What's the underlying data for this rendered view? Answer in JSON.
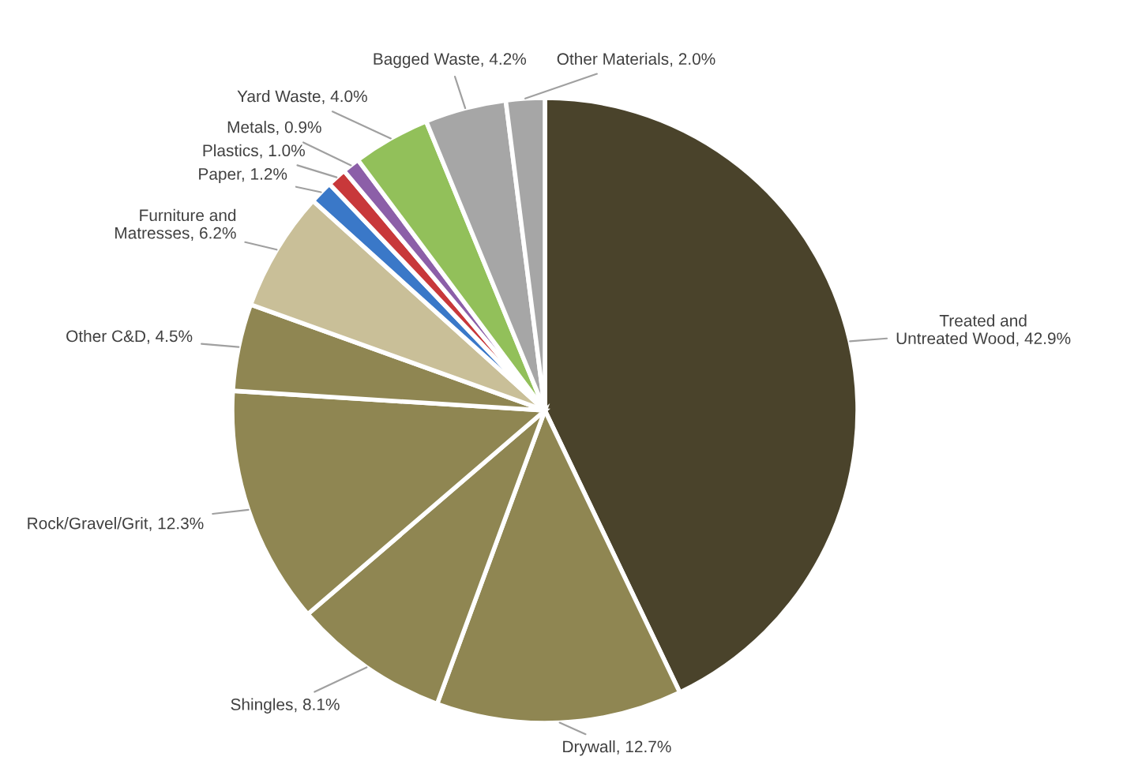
{
  "chart_data": {
    "type": "pie",
    "categories": [
      "Treated and\nUntreated Wood",
      "Drywall",
      "Shingles",
      "Rock/Gravel/Grit",
      "Other C&D",
      "Furniture and\nMatresses",
      "Paper",
      "Plastics",
      "Metals",
      "Yard Waste",
      "Bagged Waste",
      "Other Materials"
    ],
    "values": [
      42.9,
      12.7,
      8.1,
      12.3,
      4.5,
      6.2,
      1.2,
      1.0,
      0.9,
      4.0,
      4.2,
      2.0
    ],
    "colors": [
      "#4a432b",
      "#8f8652",
      "#8f8652",
      "#8f8652",
      "#8f8652",
      "#c9bf98",
      "#3a78c8",
      "#c8383a",
      "#8c5fa8",
      "#92c05a",
      "#a6a6a6",
      "#a6a6a6"
    ],
    "data_labels": true,
    "value_labels": [
      "42.9%",
      "12.7%",
      "8.1%",
      "12.3%",
      "4.5%",
      "6.2%",
      "1.2%",
      "1.0%",
      "0.9%",
      "4.0%",
      "4.2%",
      "2.0%"
    ]
  }
}
